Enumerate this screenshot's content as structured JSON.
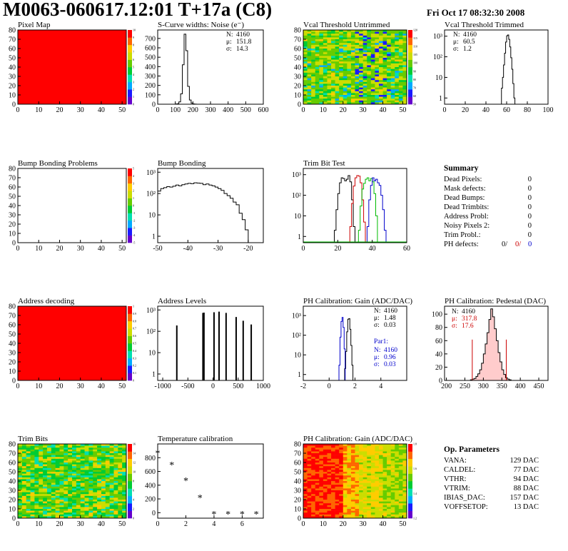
{
  "header": {
    "title": "M0063-060617.12:01 T+17a (C8)",
    "date": "Fri Oct 17 08:32:30 2008"
  },
  "colors": {
    "palette": [
      "#6600cc",
      "#1a1aff",
      "#00aaff",
      "#00e0b0",
      "#00cc33",
      "#66cc00",
      "#ccdd00",
      "#ffcc00",
      "#ff6600",
      "#ff0000"
    ],
    "hist_line": "#000000",
    "red_series": "#cc0000",
    "green_series": "#00bb00",
    "blue_series": "#0000cc"
  },
  "chart_data": [
    {
      "id": "pixel_map",
      "type": "heatmap",
      "title": "Pixel Map",
      "x_ticks": [
        "0",
        "10",
        "20",
        "30",
        "40",
        "50"
      ],
      "y_ticks": [
        "0",
        "10",
        "20",
        "30",
        "40",
        "50",
        "60",
        "70",
        "80"
      ],
      "xlim": [
        0,
        52
      ],
      "ylim": [
        0,
        80
      ],
      "fill": "uniform",
      "z_max": 10,
      "z_ticks": [
        "0",
        "1",
        "2",
        "3",
        "4",
        "5",
        "6",
        "7",
        "8",
        "9",
        "10"
      ]
    },
    {
      "id": "noise",
      "type": "histogram",
      "title": "S-Curve widths: Noise (e⁻)",
      "x_ticks": [
        "0",
        "100",
        "200",
        "300",
        "400",
        "500",
        "600"
      ],
      "y_ticks": [
        "0",
        "100",
        "200",
        "300",
        "400",
        "500",
        "600",
        "700"
      ],
      "xlim": [
        0,
        600
      ],
      "ylim": [
        0,
        790
      ],
      "log": false,
      "bins": [
        [
          100,
          2
        ],
        [
          110,
          5
        ],
        [
          120,
          25
        ],
        [
          130,
          110
        ],
        [
          140,
          420
        ],
        [
          150,
          745
        ],
        [
          160,
          570
        ],
        [
          170,
          190
        ],
        [
          180,
          45
        ],
        [
          190,
          12
        ],
        [
          200,
          3
        ],
        [
          210,
          1
        ]
      ],
      "bin_width": 10,
      "stats": [
        {
          "k": "N:",
          "v": "4160"
        },
        {
          "k": "μ:",
          "v": "151.8"
        },
        {
          "k": "σ:",
          "v": "14.3"
        }
      ]
    },
    {
      "id": "vcal_untrimmed",
      "type": "heatmap",
      "title": "Vcal Threshold Untrimmed",
      "x_ticks": [
        "0",
        "10",
        "20",
        "30",
        "40",
        "50"
      ],
      "y_ticks": [
        "0",
        "10",
        "20",
        "30",
        "40",
        "50",
        "60",
        "70",
        "80"
      ],
      "xlim": [
        0,
        52
      ],
      "ylim": [
        0,
        80
      ],
      "fill": "noisy",
      "z_ticks": [
        "50",
        "60",
        "70",
        "80",
        "90",
        "100",
        "105",
        "110",
        "115",
        "120"
      ]
    },
    {
      "id": "vcal_trimmed",
      "type": "histogram",
      "title": "Vcal Threshold Trimmed",
      "x_ticks": [
        "0",
        "20",
        "40",
        "60",
        "80",
        "100"
      ],
      "y_ticks": [
        "1",
        "10",
        "10²",
        "10³"
      ],
      "xlim": [
        0,
        100
      ],
      "ylim": [
        0.5,
        2000
      ],
      "log": true,
      "bins": [
        [
          55,
          3
        ],
        [
          56,
          10
        ],
        [
          57,
          40
        ],
        [
          58,
          150
        ],
        [
          59,
          520
        ],
        [
          60,
          1050
        ],
        [
          61,
          1150
        ],
        [
          62,
          700
        ],
        [
          63,
          300
        ],
        [
          64,
          90
        ],
        [
          65,
          25
        ],
        [
          66,
          5
        ],
        [
          67,
          1
        ]
      ],
      "bin_width": 1,
      "stats": [
        {
          "k": "N:",
          "v": "4160"
        },
        {
          "k": "μ:",
          "v": "60.5"
        },
        {
          "k": "σ:",
          "v": "1.2"
        }
      ]
    },
    {
      "id": "bump_problems",
      "type": "heatmap",
      "title": "Bump Bonding Problems",
      "x_ticks": [
        "0",
        "10",
        "20",
        "30",
        "40",
        "50"
      ],
      "y_ticks": [
        "0",
        "10",
        "20",
        "30",
        "40",
        "50",
        "60",
        "70",
        "80"
      ],
      "xlim": [
        0,
        52
      ],
      "ylim": [
        0,
        80
      ],
      "fill": "empty",
      "z_ticks": [
        "-5",
        "-4",
        "-3",
        "-2",
        "-1",
        "0",
        "1",
        "2",
        "3",
        "4",
        "5"
      ]
    },
    {
      "id": "bump_bonding",
      "type": "histogram",
      "title": "Bump Bonding",
      "x_ticks": [
        "-50",
        "-40",
        "-30",
        "-20"
      ],
      "y_ticks": [
        "1",
        "10",
        "10²",
        "10³"
      ],
      "xlim": [
        -50,
        -15
      ],
      "ylim": [
        0.5,
        1500
      ],
      "log": true,
      "bins": [
        [
          -50,
          130
        ],
        [
          -49,
          170
        ],
        [
          -48,
          190
        ],
        [
          -47,
          210
        ],
        [
          -46,
          200
        ],
        [
          -45,
          220
        ],
        [
          -44,
          250
        ],
        [
          -43,
          230
        ],
        [
          -42,
          260
        ],
        [
          -41,
          280
        ],
        [
          -40,
          300
        ],
        [
          -39,
          290
        ],
        [
          -38,
          320
        ],
        [
          -37,
          310
        ],
        [
          -36,
          300
        ],
        [
          -35,
          260
        ],
        [
          -34,
          280
        ],
        [
          -33,
          250
        ],
        [
          -32,
          230
        ],
        [
          -31,
          200
        ],
        [
          -30,
          170
        ],
        [
          -29,
          140
        ],
        [
          -28,
          100
        ],
        [
          -27,
          80
        ],
        [
          -26,
          60
        ],
        [
          -25,
          40
        ],
        [
          -24,
          30
        ],
        [
          -23,
          12
        ],
        [
          -22,
          6
        ],
        [
          -21,
          2
        ],
        [
          -20,
          0.5
        ]
      ],
      "bin_width": 1
    },
    {
      "id": "trim_bit_test",
      "type": "histogram",
      "title": "Trim Bit Test",
      "x_ticks": [
        "0",
        "20",
        "40",
        "60"
      ],
      "y_ticks": [
        "1",
        "10",
        "10²",
        "10³"
      ],
      "xlim": [
        0,
        60
      ],
      "ylim": [
        0.5,
        2000
      ],
      "log": true,
      "multi": [
        {
          "color": "#000000",
          "bins": [
            [
              18,
              2
            ],
            [
              19,
              20
            ],
            [
              20,
              120
            ],
            [
              21,
              400
            ],
            [
              22,
              700
            ],
            [
              23,
              650
            ],
            [
              24,
              500
            ],
            [
              25,
              600
            ],
            [
              26,
              900
            ],
            [
              27,
              450
            ],
            [
              28,
              60
            ],
            [
              29,
              3
            ]
          ]
        },
        {
          "color": "#cc0000",
          "bins": [
            [
              27,
              3
            ],
            [
              28,
              40
            ],
            [
              29,
              280
            ],
            [
              30,
              700
            ],
            [
              31,
              900
            ],
            [
              32,
              850
            ],
            [
              33,
              400
            ],
            [
              34,
              60
            ],
            [
              35,
              5
            ]
          ]
        },
        {
          "color": "#00bb00",
          "bins": [
            [
              32,
              2
            ],
            [
              33,
              30
            ],
            [
              34,
              200
            ],
            [
              35,
              380
            ],
            [
              36,
              600
            ],
            [
              37,
              700
            ],
            [
              38,
              500
            ],
            [
              39,
              650
            ],
            [
              40,
              450
            ],
            [
              41,
              120
            ],
            [
              42,
              10
            ]
          ]
        },
        {
          "color": "#0000cc",
          "bins": [
            [
              37,
              3
            ],
            [
              38,
              60
            ],
            [
              39,
              300
            ],
            [
              40,
              700
            ],
            [
              41,
              500
            ],
            [
              42,
              600
            ],
            [
              43,
              400
            ],
            [
              44,
              300
            ],
            [
              45,
              100
            ],
            [
              46,
              20
            ],
            [
              47,
              2
            ]
          ]
        }
      ],
      "bin_width": 1
    },
    {
      "id": "address_decoding",
      "type": "heatmap",
      "title": "Address decoding",
      "x_ticks": [
        "0",
        "10",
        "20",
        "30",
        "40",
        "50"
      ],
      "y_ticks": [
        "0",
        "10",
        "20",
        "30",
        "40",
        "50",
        "60",
        "70",
        "80"
      ],
      "xlim": [
        0,
        52
      ],
      "ylim": [
        0,
        80
      ],
      "fill": "uniform",
      "z_ticks": [
        "0",
        "0.1",
        "0.2",
        "0.3",
        "0.4",
        "0.5",
        "0.6",
        "0.7",
        "0.8",
        "0.9",
        "1"
      ]
    },
    {
      "id": "address_levels",
      "type": "histogram",
      "title": "Address Levels",
      "x_ticks": [
        "-1000",
        "-500",
        "0",
        "500",
        "1000"
      ],
      "y_ticks": [
        "1",
        "10",
        "10²",
        "10³"
      ],
      "xlim": [
        -1100,
        1000
      ],
      "ylim": [
        0.5,
        1500
      ],
      "log": true,
      "spikes": [
        [
          -720,
          180
        ],
        [
          -200,
          700
        ],
        [
          -180,
          720
        ],
        [
          20,
          750
        ],
        [
          120,
          800
        ],
        [
          260,
          700
        ],
        [
          460,
          450
        ],
        [
          600,
          300
        ],
        [
          760,
          200
        ]
      ],
      "spike_width": 14
    },
    {
      "id": "ph_gain",
      "type": "histogram",
      "title": "PH Calibration: Gain (ADC/DAC)",
      "x_ticks": [
        "-2",
        "0",
        "2",
        "4"
      ],
      "y_ticks": [
        "1",
        "10",
        "10²",
        "10³"
      ],
      "xlim": [
        -2,
        6
      ],
      "ylim": [
        0.5,
        3000
      ],
      "log": true,
      "multi": [
        {
          "color": "#000000",
          "bins": [
            [
              1.2,
              2
            ],
            [
              1.28,
              15
            ],
            [
              1.36,
              150
            ],
            [
              1.44,
              650
            ],
            [
              1.52,
              700
            ],
            [
              1.6,
              200
            ],
            [
              1.68,
              30
            ],
            [
              1.76,
              3
            ]
          ]
        },
        {
          "color": "#0000cc",
          "bins": [
            [
              0.76,
              3
            ],
            [
              0.84,
              80
            ],
            [
              0.92,
              500
            ],
            [
              1.0,
              800
            ],
            [
              1.08,
              250
            ],
            [
              1.16,
              20
            ]
          ]
        }
      ],
      "bin_width": 0.08,
      "stats": [
        {
          "k": "N:",
          "v": "4160"
        },
        {
          "k": "μ:",
          "v": "1.48"
        },
        {
          "k": "σ:",
          "v": "0.03"
        }
      ],
      "stats2_title": "Par1:",
      "stats2": [
        {
          "k": "N:",
          "v": "4160"
        },
        {
          "k": "μ:",
          "v": "0.96"
        },
        {
          "k": "σ:",
          "v": "0.03"
        }
      ]
    },
    {
      "id": "ph_pedestal",
      "type": "histogram",
      "title": "PH Calibration: Pedestal (DAC)",
      "x_ticks": [
        "200",
        "250",
        "300",
        "350",
        "400",
        "450"
      ],
      "y_ticks": [
        "0",
        "20",
        "40",
        "60",
        "80",
        "100"
      ],
      "xlim": [
        195,
        475
      ],
      "ylim": [
        0,
        112
      ],
      "log": false,
      "bins": [
        [
          265,
          1
        ],
        [
          270,
          2
        ],
        [
          275,
          3
        ],
        [
          280,
          6
        ],
        [
          285,
          10
        ],
        [
          290,
          16
        ],
        [
          295,
          26
        ],
        [
          300,
          40
        ],
        [
          305,
          55
        ],
        [
          310,
          72
        ],
        [
          315,
          92
        ],
        [
          320,
          108
        ],
        [
          325,
          96
        ],
        [
          330,
          78
        ],
        [
          335,
          60
        ],
        [
          340,
          42
        ],
        [
          345,
          28
        ],
        [
          350,
          16
        ],
        [
          355,
          9
        ],
        [
          360,
          4
        ],
        [
          365,
          2
        ],
        [
          370,
          1
        ]
      ],
      "bin_width": 5,
      "cut_lines": [
        270,
        362
      ],
      "stats": [
        {
          "k": "N:",
          "v": "4160"
        },
        {
          "k": "μ:",
          "v": "317.8"
        },
        {
          "k": "σ:",
          "v": "17.6"
        }
      ]
    },
    {
      "id": "trim_bits",
      "type": "heatmap",
      "title": "Trim Bits",
      "x_ticks": [
        "0",
        "10",
        "20",
        "30",
        "40",
        "50"
      ],
      "y_ticks": [
        "0",
        "10",
        "20",
        "30",
        "40",
        "50",
        "60",
        "70",
        "80"
      ],
      "xlim": [
        0,
        52
      ],
      "ylim": [
        0,
        80
      ],
      "fill": "trim",
      "z_ticks": [
        "0",
        "2",
        "4",
        "6",
        "8",
        "10",
        "12",
        "14",
        "16"
      ]
    },
    {
      "id": "temperature",
      "type": "scatter",
      "title": "Temperature calibration",
      "x_ticks": [
        "0",
        "2",
        "4",
        "6"
      ],
      "y_ticks": [
        "0",
        "200",
        "400",
        "600",
        "800"
      ],
      "xlim": [
        0,
        7.5
      ],
      "ylim": [
        -80,
        1000
      ],
      "points": [
        [
          0,
          870
        ],
        [
          1,
          700
        ],
        [
          2,
          470
        ],
        [
          3,
          220
        ],
        [
          4,
          -20
        ],
        [
          5,
          -20
        ],
        [
          6,
          -20
        ],
        [
          7,
          -20
        ]
      ]
    },
    {
      "id": "ph_gain_map",
      "type": "heatmap",
      "title": "PH Calibration: Gain (ADC/DAC)",
      "x_ticks": [
        "0",
        "10",
        "20",
        "30",
        "40",
        "50"
      ],
      "y_ticks": [
        "0",
        "10",
        "20",
        "30",
        "40",
        "50",
        "60",
        "70",
        "80"
      ],
      "xlim": [
        0,
        52
      ],
      "ylim": [
        0,
        80
      ],
      "fill": "gain",
      "z_ticks": [
        "1.2",
        "1.4",
        "1.6",
        "1.8"
      ]
    }
  ],
  "summary": {
    "title": "Summary",
    "rows": [
      {
        "label": "Dead Pixels:",
        "value": "0"
      },
      {
        "label": "Mask defects:",
        "value": "0"
      },
      {
        "label": "Dead Bumps:",
        "value": "0"
      },
      {
        "label": "Dead Trimbits:",
        "value": "0"
      },
      {
        "label": "Address Probl:",
        "value": "0"
      },
      {
        "label": "Noisy Pixels 2:",
        "value": "0"
      },
      {
        "label": "Trim Probl.:",
        "value": "0"
      }
    ],
    "ph_label": "PH defects:",
    "ph_values": [
      "0/",
      "0/",
      "0"
    ]
  },
  "op_params": {
    "title": "Op. Parameters",
    "rows": [
      {
        "label": "VANA:",
        "value": "129 DAC"
      },
      {
        "label": "CALDEL:",
        "value": "77 DAC"
      },
      {
        "label": "VTHR:",
        "value": "94 DAC"
      },
      {
        "label": "VTRIM:",
        "value": "88 DAC"
      },
      {
        "label": "IBIAS_DAC:",
        "value": "157 DAC"
      },
      {
        "label": "VOFFSETOP:",
        "value": "13 DAC"
      }
    ]
  }
}
